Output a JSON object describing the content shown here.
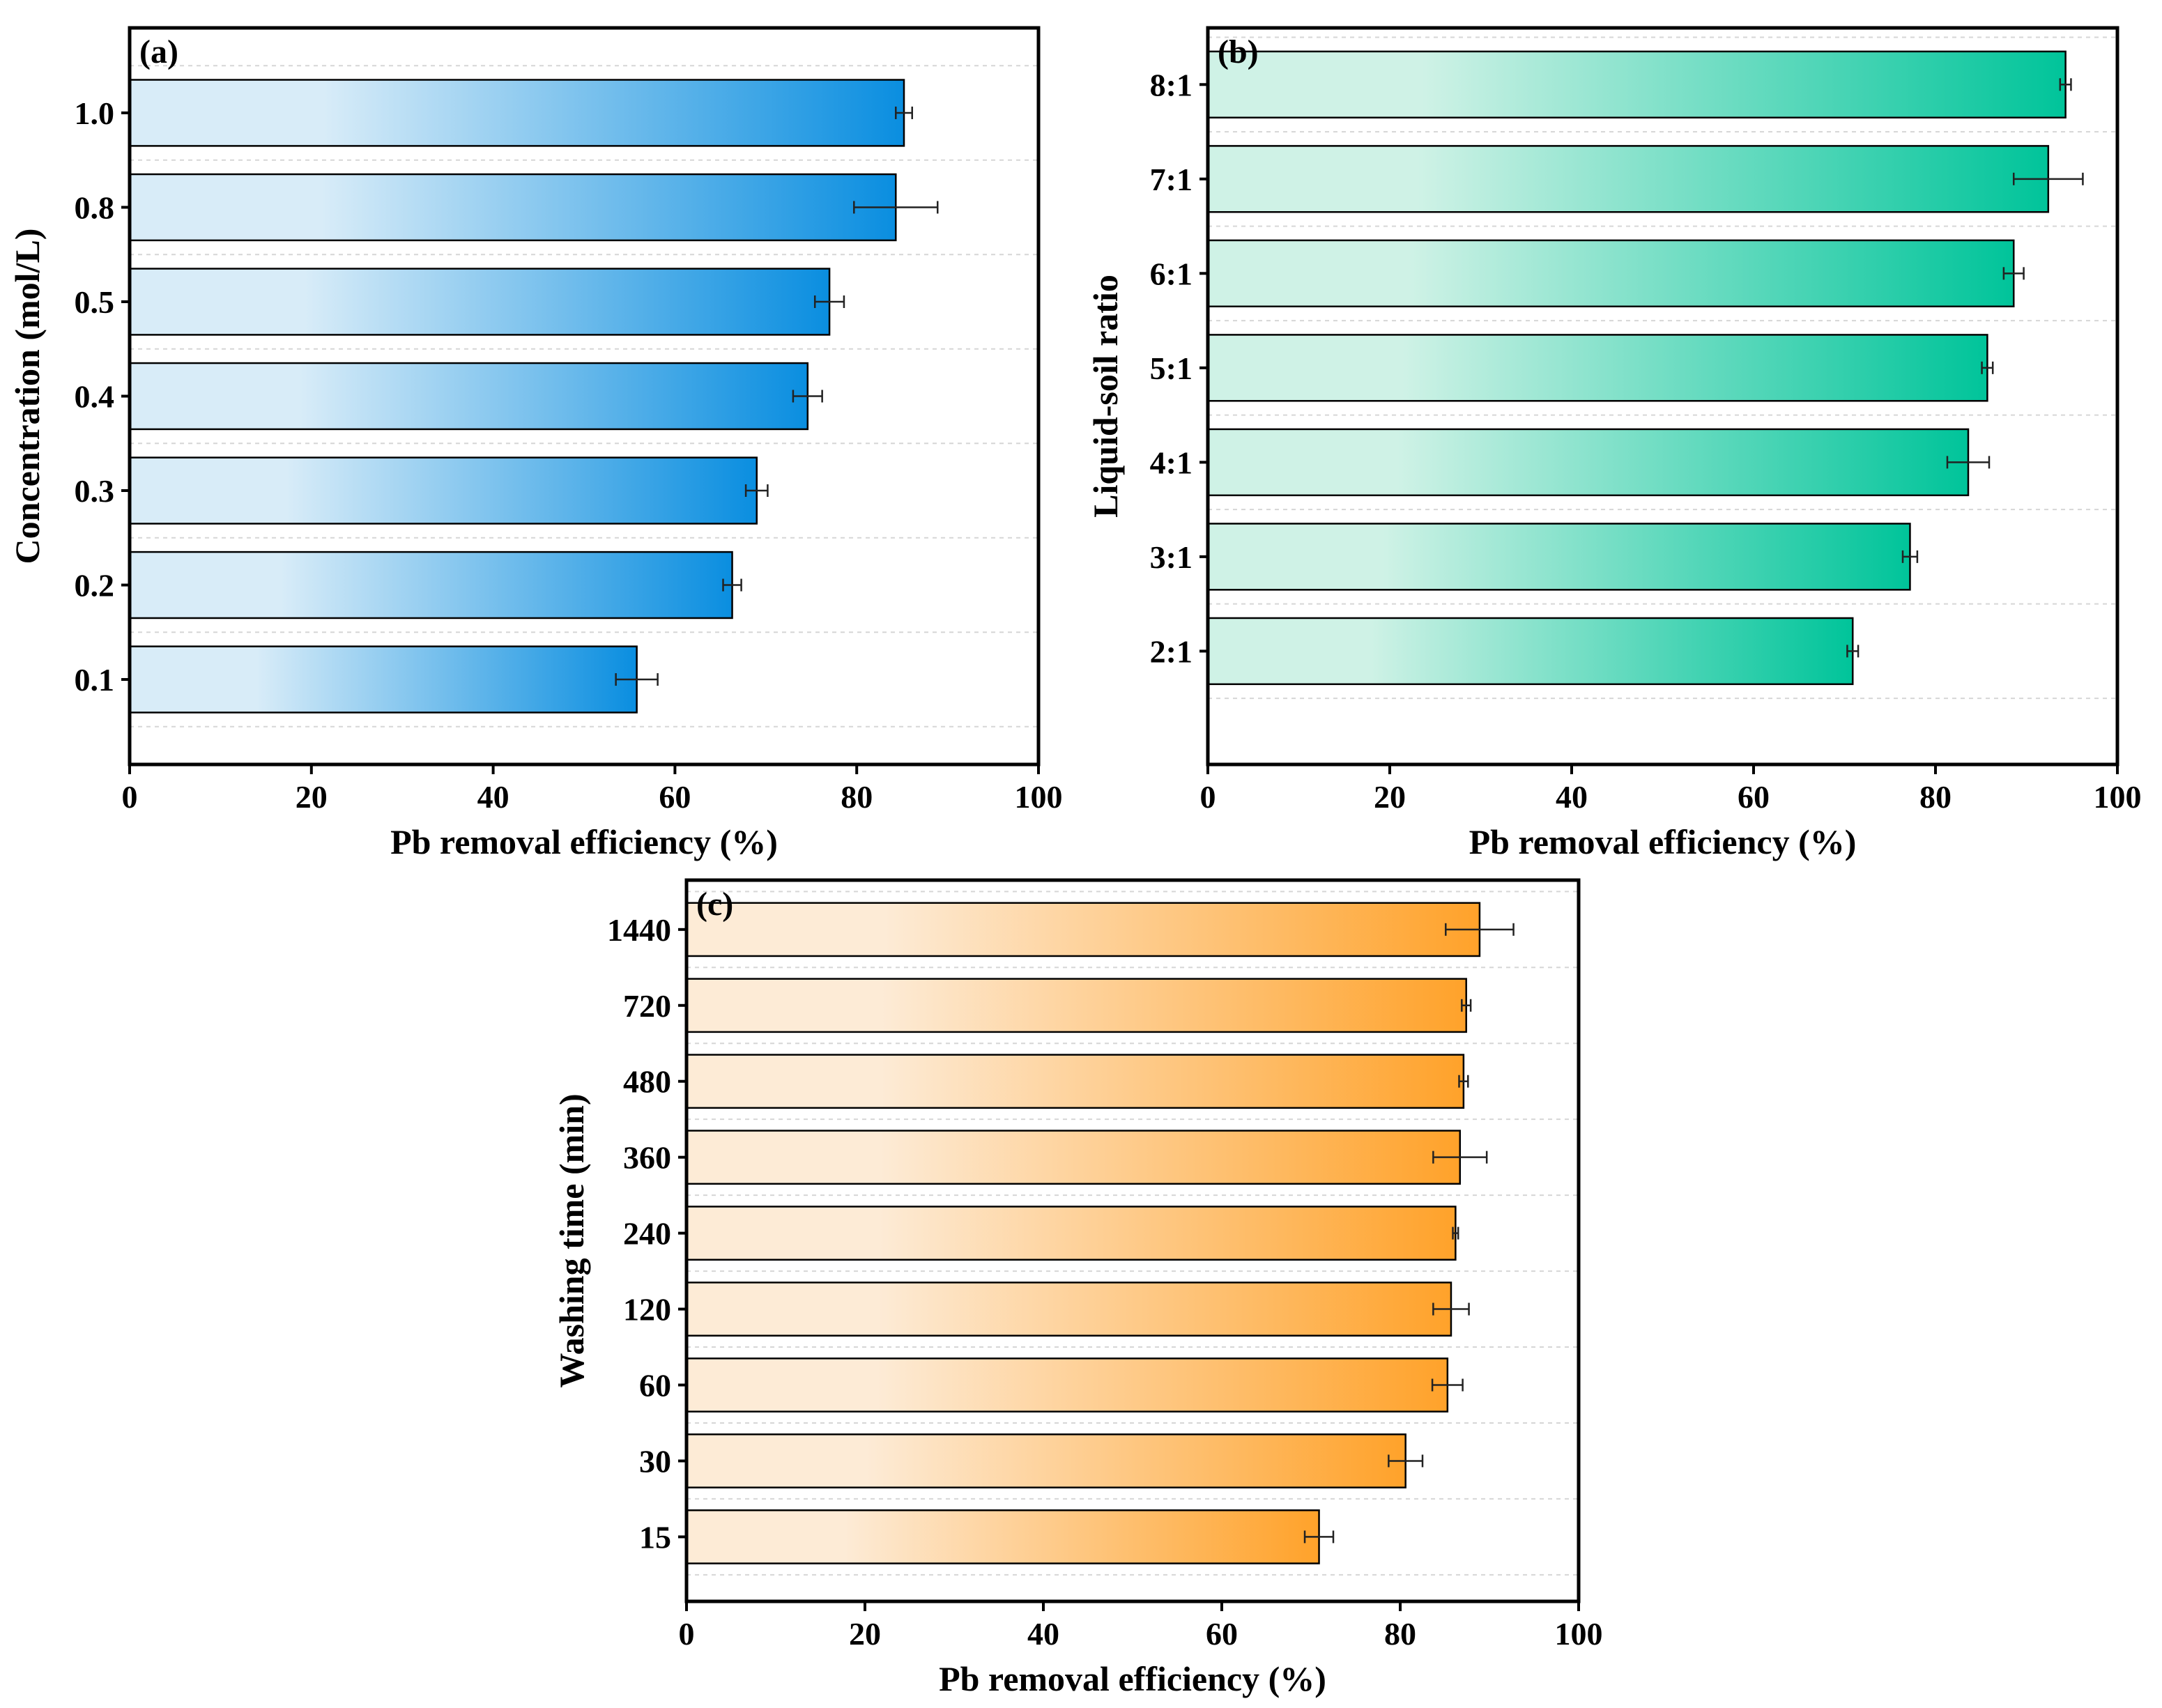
{
  "figure": {
    "description_free": true
  },
  "chart_data": [
    {
      "id": "a",
      "type": "bar",
      "orientation": "horizontal",
      "panel_label": "(a)",
      "title": "",
      "xlabel": "Pb removal efficiency (%)",
      "ylabel": "Concentration (mol/L)",
      "xlim": [
        0,
        100
      ],
      "xticks": [
        "0",
        "20",
        "40",
        "60",
        "80",
        "100"
      ],
      "categories": [
        "0.1",
        "0.2",
        "0.3",
        "0.4",
        "0.5",
        "0.8",
        "1.0"
      ],
      "values": [
        55.8,
        66.3,
        69.0,
        74.6,
        77.0,
        84.3,
        85.2
      ],
      "errors": [
        2.3,
        1.0,
        1.2,
        1.6,
        1.6,
        4.6,
        0.9
      ],
      "grid": true,
      "color": {
        "light": "#d8ecf8",
        "dark": "#0a8ee0"
      }
    },
    {
      "id": "b",
      "type": "bar",
      "orientation": "horizontal",
      "panel_label": "(b)",
      "title": "",
      "xlabel": "Pb removal efficiency (%)",
      "ylabel": "Liquid-soil ratio",
      "xlim": [
        0,
        100
      ],
      "xticks": [
        "0",
        "20",
        "40",
        "60",
        "80",
        "100"
      ],
      "categories": [
        "2:1",
        "3:1",
        "4:1",
        "5:1",
        "6:1",
        "7:1",
        "8:1"
      ],
      "values": [
        70.9,
        77.2,
        83.6,
        85.7,
        88.6,
        92.4,
        94.3
      ],
      "errors": [
        0.6,
        0.8,
        2.3,
        0.6,
        1.1,
        3.8,
        0.6
      ],
      "grid": true,
      "color": {
        "light": "#cff2e6",
        "dark": "#00c49a"
      }
    },
    {
      "id": "c",
      "type": "bar",
      "orientation": "horizontal",
      "panel_label": "(c)",
      "title": "",
      "xlabel": "Pb removal efficiency (%)",
      "ylabel": "Washing time (min)",
      "xlim": [
        0,
        100
      ],
      "xticks": [
        "0",
        "20",
        "40",
        "60",
        "80",
        "100"
      ],
      "categories": [
        "15",
        "30",
        "60",
        "120",
        "240",
        "360",
        "480",
        "720",
        "1440"
      ],
      "values": [
        70.9,
        80.6,
        85.3,
        85.7,
        86.2,
        86.7,
        87.1,
        87.4,
        88.9
      ],
      "errors": [
        1.6,
        1.9,
        1.7,
        2.0,
        0.3,
        3.0,
        0.5,
        0.5,
        3.8
      ],
      "grid": true,
      "color": {
        "light": "#fdebd6",
        "dark": "#ffa22a"
      }
    }
  ]
}
